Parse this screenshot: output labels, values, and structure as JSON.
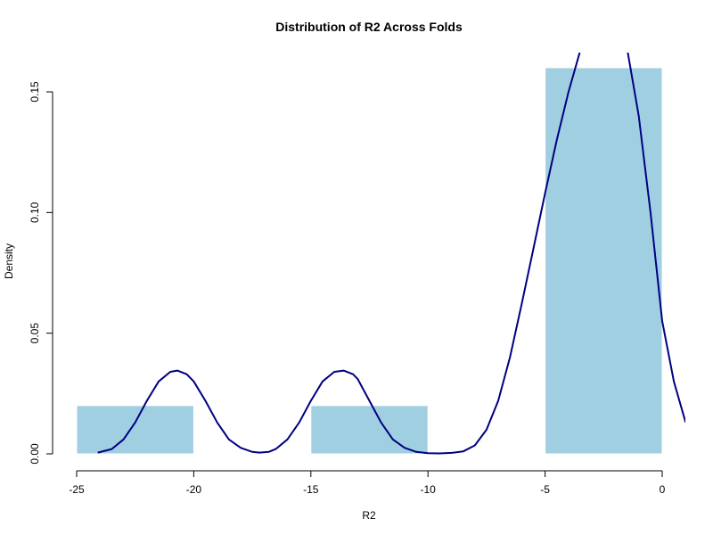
{
  "chart_data": {
    "type": "histogram",
    "title": "Distribution of R2 Across Folds",
    "xlabel": "R2",
    "ylabel": "Density",
    "xlim": [
      -25,
      1
    ],
    "ylim": [
      0,
      0.15
    ],
    "x_ticks": [
      -25,
      -20,
      -15,
      -10,
      -5,
      0
    ],
    "x_tick_labels": [
      "-25",
      "-20",
      "-15",
      "-10",
      "-5",
      "0"
    ],
    "y_ticks": [
      0,
      0.05,
      0.1,
      0.15
    ],
    "y_tick_labels": [
      "0.00",
      "0.05",
      "0.10",
      "0.15"
    ],
    "bars": [
      {
        "x0": -25,
        "x1": -20,
        "density": 0.02
      },
      {
        "x0": -20,
        "x1": -15,
        "density": 0.0
      },
      {
        "x0": -15,
        "x1": -10,
        "density": 0.02
      },
      {
        "x0": -10,
        "x1": -5,
        "density": 0.0
      },
      {
        "x0": -5,
        "x1": 0,
        "density": 0.16
      }
    ],
    "density_curve": {
      "x": [
        -24.1,
        -23.5,
        -23.0,
        -22.5,
        -22.0,
        -21.5,
        -21.0,
        -20.7,
        -20.3,
        -20.0,
        -19.5,
        -19.0,
        -18.5,
        -18.0,
        -17.5,
        -17.2,
        -16.8,
        -16.5,
        -16.0,
        -15.5,
        -15.0,
        -14.5,
        -14.0,
        -13.6,
        -13.2,
        -13.0,
        -12.5,
        -12.0,
        -11.5,
        -11.0,
        -10.5,
        -10.0,
        -9.5,
        -9.0,
        -8.5,
        -8.0,
        -7.5,
        -7.0,
        -6.5,
        -6.0,
        -5.5,
        -5.0,
        -4.5,
        -4.0,
        -3.5,
        -3.2,
        -3.0,
        -2.0,
        -1.7,
        -1.5,
        -1.0,
        -0.5,
        0.0,
        0.5,
        1.0
      ],
      "y": [
        0.0005,
        0.002,
        0.006,
        0.013,
        0.022,
        0.03,
        0.034,
        0.0345,
        0.033,
        0.03,
        0.022,
        0.013,
        0.006,
        0.0025,
        0.0008,
        0.0005,
        0.0008,
        0.002,
        0.006,
        0.013,
        0.022,
        0.03,
        0.034,
        0.0345,
        0.033,
        0.031,
        0.022,
        0.013,
        0.006,
        0.0025,
        0.0008,
        0.0003,
        0.0002,
        0.0004,
        0.001,
        0.0035,
        0.01,
        0.022,
        0.04,
        0.062,
        0.085,
        0.108,
        0.13,
        0.15,
        0.167,
        0.172,
        0.175,
        0.175,
        0.172,
        0.168,
        0.14,
        0.1,
        0.055,
        0.03,
        0.013
      ]
    },
    "colors": {
      "bar_fill": "#a0cfe2",
      "curve": "#000080"
    },
    "grid": false,
    "legend": "none"
  }
}
